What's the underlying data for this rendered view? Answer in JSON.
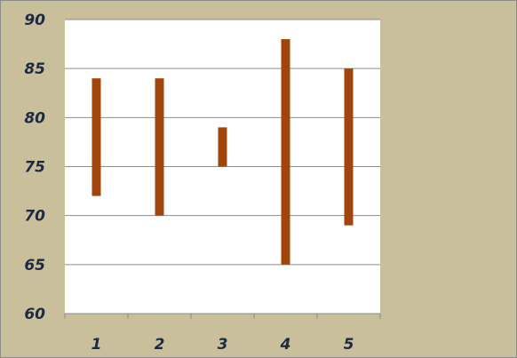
{
  "chart_data": {
    "type": "bar",
    "subtype": "floating-range",
    "title": "",
    "xlabel": "",
    "ylabel": "",
    "categories": [
      "1",
      "2",
      "3",
      "4",
      "5"
    ],
    "ranges": [
      {
        "low": 72,
        "high": 84
      },
      {
        "low": 70,
        "high": 84
      },
      {
        "low": 75,
        "high": 79
      },
      {
        "low": 65,
        "high": 88
      },
      {
        "low": 69,
        "high": 85
      }
    ],
    "ylim": [
      60,
      90
    ],
    "yticks": [
      60,
      65,
      70,
      75,
      80,
      85,
      90
    ],
    "grid": true,
    "legend": "none",
    "colors": {
      "bar": "#a0460d",
      "frame_bg": "#c9bf9a",
      "plot_bg": "#ffffff",
      "grid": "#8c8c8c",
      "label": "#1f2a44"
    }
  }
}
